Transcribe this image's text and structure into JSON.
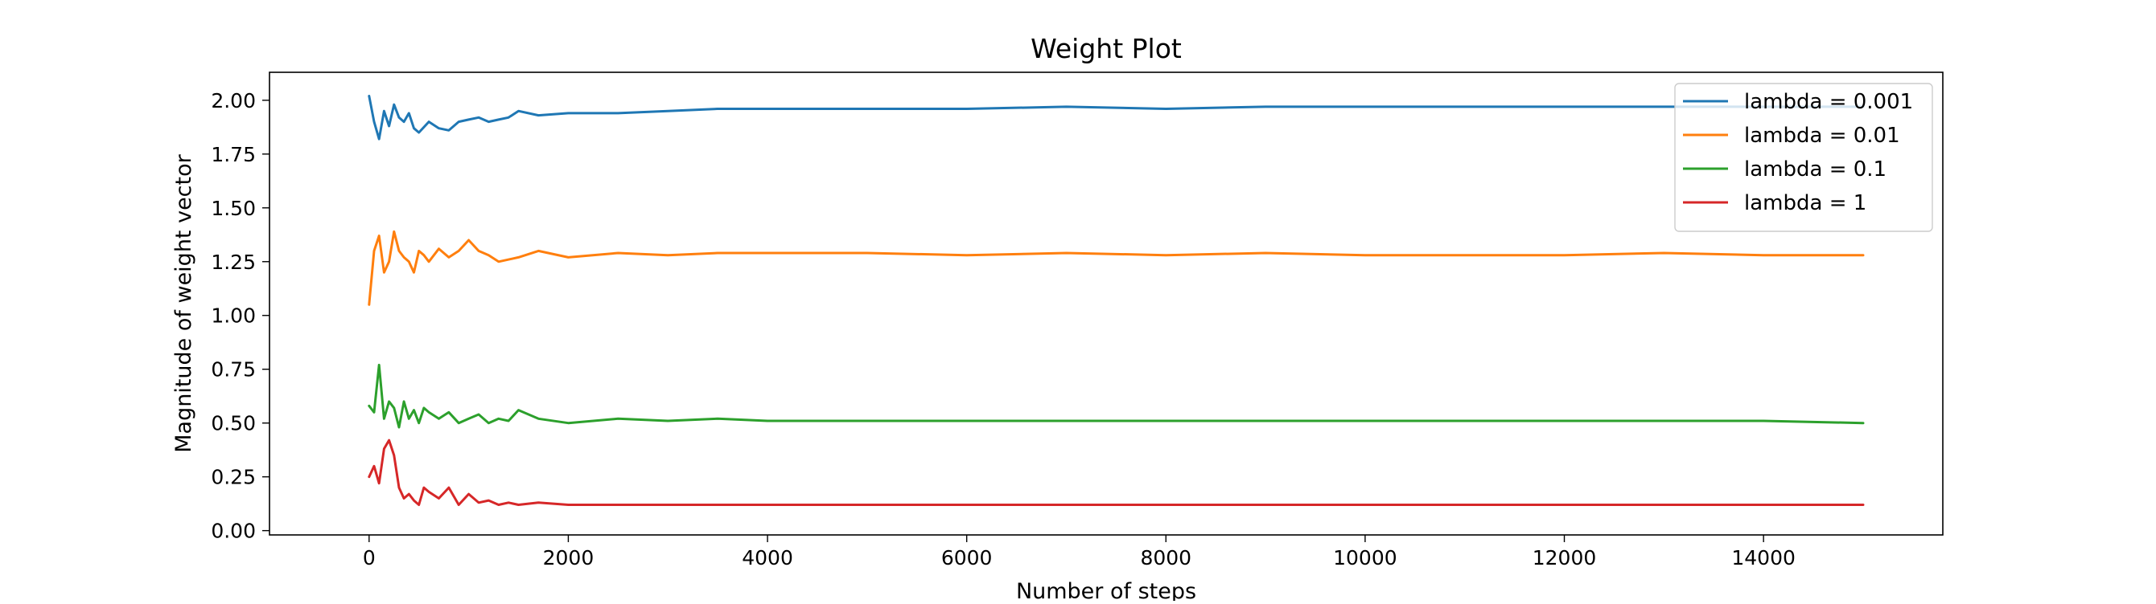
{
  "chart_data": {
    "type": "line",
    "title": "Weight Plot",
    "xlabel": "Number of steps",
    "ylabel": "Magnitude of weight vector",
    "xlim": [
      -1000,
      15800
    ],
    "ylim": [
      -0.02,
      2.13
    ],
    "xticks": [
      0,
      2000,
      4000,
      6000,
      8000,
      10000,
      12000,
      14000
    ],
    "yticks": [
      0.0,
      0.25,
      0.5,
      0.75,
      1.0,
      1.25,
      1.5,
      1.75,
      2.0
    ],
    "xtick_labels": [
      "0",
      "2000",
      "4000",
      "6000",
      "8000",
      "10000",
      "12000",
      "14000"
    ],
    "ytick_labels": [
      "0.00",
      "0.25",
      "0.50",
      "0.75",
      "1.00",
      "1.25",
      "1.50",
      "1.75",
      "2.00"
    ],
    "grid": false,
    "legend": "top-right",
    "series": [
      {
        "name": "lambda = 0.001",
        "color": "#1f77b4",
        "x": [
          0,
          50,
          100,
          150,
          200,
          250,
          300,
          350,
          400,
          450,
          500,
          600,
          700,
          800,
          900,
          1000,
          1100,
          1200,
          1300,
          1400,
          1500,
          1700,
          2000,
          2500,
          3000,
          3500,
          4000,
          5000,
          6000,
          7000,
          8000,
          9000,
          10000,
          11000,
          12000,
          13000,
          14000,
          15000
        ],
        "y": [
          2.02,
          1.9,
          1.82,
          1.95,
          1.88,
          1.98,
          1.92,
          1.9,
          1.94,
          1.87,
          1.85,
          1.9,
          1.87,
          1.86,
          1.9,
          1.91,
          1.92,
          1.9,
          1.91,
          1.92,
          1.95,
          1.93,
          1.94,
          1.94,
          1.95,
          1.96,
          1.96,
          1.96,
          1.96,
          1.97,
          1.96,
          1.97,
          1.97,
          1.97,
          1.97,
          1.97,
          1.97,
          1.97
        ]
      },
      {
        "name": "lambda = 0.01",
        "color": "#ff7f0e",
        "x": [
          0,
          50,
          100,
          150,
          200,
          250,
          300,
          350,
          400,
          450,
          500,
          550,
          600,
          700,
          800,
          900,
          1000,
          1100,
          1200,
          1300,
          1500,
          1700,
          2000,
          2500,
          3000,
          3500,
          4000,
          4500,
          5000,
          6000,
          7000,
          8000,
          9000,
          10000,
          11000,
          12000,
          13000,
          14000,
          15000
        ],
        "y": [
          1.05,
          1.3,
          1.37,
          1.2,
          1.25,
          1.39,
          1.3,
          1.27,
          1.25,
          1.2,
          1.3,
          1.28,
          1.25,
          1.31,
          1.27,
          1.3,
          1.35,
          1.3,
          1.28,
          1.25,
          1.27,
          1.3,
          1.27,
          1.29,
          1.28,
          1.29,
          1.29,
          1.29,
          1.29,
          1.28,
          1.29,
          1.28,
          1.29,
          1.28,
          1.28,
          1.28,
          1.29,
          1.28,
          1.28
        ]
      },
      {
        "name": "lambda = 0.1",
        "color": "#2ca02c",
        "x": [
          0,
          50,
          100,
          150,
          200,
          250,
          300,
          350,
          400,
          450,
          500,
          550,
          600,
          700,
          800,
          900,
          1000,
          1100,
          1200,
          1300,
          1400,
          1500,
          1700,
          2000,
          2500,
          3000,
          3500,
          4000,
          5000,
          6000,
          7000,
          8000,
          9000,
          10000,
          11000,
          12000,
          13000,
          14000,
          15000
        ],
        "y": [
          0.58,
          0.55,
          0.77,
          0.52,
          0.6,
          0.57,
          0.48,
          0.6,
          0.52,
          0.56,
          0.5,
          0.57,
          0.55,
          0.52,
          0.55,
          0.5,
          0.52,
          0.54,
          0.5,
          0.52,
          0.51,
          0.56,
          0.52,
          0.5,
          0.52,
          0.51,
          0.52,
          0.51,
          0.51,
          0.51,
          0.51,
          0.51,
          0.51,
          0.51,
          0.51,
          0.51,
          0.51,
          0.51,
          0.5
        ]
      },
      {
        "name": "lambda = 1",
        "color": "#d62728",
        "x": [
          0,
          50,
          100,
          150,
          200,
          250,
          300,
          350,
          400,
          450,
          500,
          550,
          600,
          700,
          800,
          900,
          1000,
          1100,
          1200,
          1300,
          1400,
          1500,
          1700,
          2000,
          2500,
          3000,
          3500,
          4000,
          5000,
          6000,
          7000,
          8000,
          9000,
          10000,
          11000,
          12000,
          13000,
          14000,
          15000
        ],
        "y": [
          0.25,
          0.3,
          0.22,
          0.38,
          0.42,
          0.35,
          0.2,
          0.15,
          0.17,
          0.14,
          0.12,
          0.2,
          0.18,
          0.15,
          0.2,
          0.12,
          0.17,
          0.13,
          0.14,
          0.12,
          0.13,
          0.12,
          0.13,
          0.12,
          0.12,
          0.12,
          0.12,
          0.12,
          0.12,
          0.12,
          0.12,
          0.12,
          0.12,
          0.12,
          0.12,
          0.12,
          0.12,
          0.12,
          0.12
        ]
      }
    ]
  }
}
